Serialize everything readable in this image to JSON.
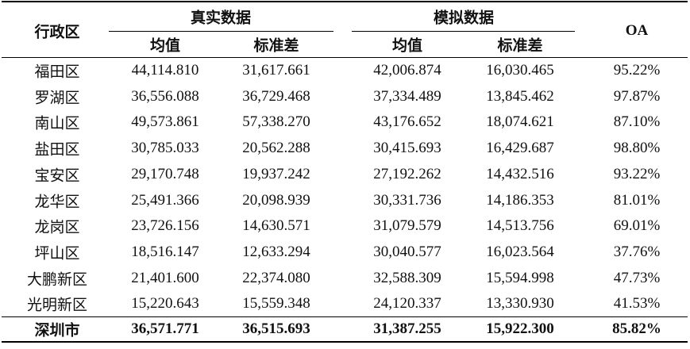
{
  "table": {
    "header": {
      "district": "行政区",
      "real": "真实数据",
      "sim": "模拟数据",
      "oa": "OA",
      "sub": [
        "均值",
        "标准差",
        "均值",
        "标准差"
      ]
    },
    "rows": [
      [
        "福田区",
        "44,114.810",
        "31,617.661",
        "42,006.874",
        "16,030.465",
        "95.22%"
      ],
      [
        "罗湖区",
        "36,556.088",
        "36,729.468",
        "37,334.489",
        "13,845.462",
        "97.87%"
      ],
      [
        "南山区",
        "49,573.861",
        "57,338.270",
        "43,176.652",
        "18,074.621",
        "87.10%"
      ],
      [
        "盐田区",
        "30,785.033",
        "20,562.288",
        "30,415.693",
        "16,429.687",
        "98.80%"
      ],
      [
        "宝安区",
        "29,170.748",
        "19,937.242",
        "27,192.262",
        "14,432.516",
        "93.22%"
      ],
      [
        "龙华区",
        "25,491.366",
        "20,098.939",
        "30,331.736",
        "14,186.353",
        "81.01%"
      ],
      [
        "龙岗区",
        "23,726.156",
        "14,630.571",
        "31,079.579",
        "14,513.756",
        "69.01%"
      ],
      [
        "坪山区",
        "18,516.147",
        "12,633.294",
        "30,040.577",
        "16,023.564",
        "37.76%"
      ],
      [
        "大鹏新区",
        "21,401.600",
        "22,374.080",
        "32,588.309",
        "15,594.998",
        "47.73%"
      ],
      [
        "光明新区",
        "15,220.643",
        "15,559.348",
        "24,120.337",
        "13,330.930",
        "41.53%"
      ]
    ],
    "total": [
      "深圳市",
      "36,571.771",
      "36,515.693",
      "31,387.255",
      "15,922.300",
      "85.82%"
    ]
  }
}
